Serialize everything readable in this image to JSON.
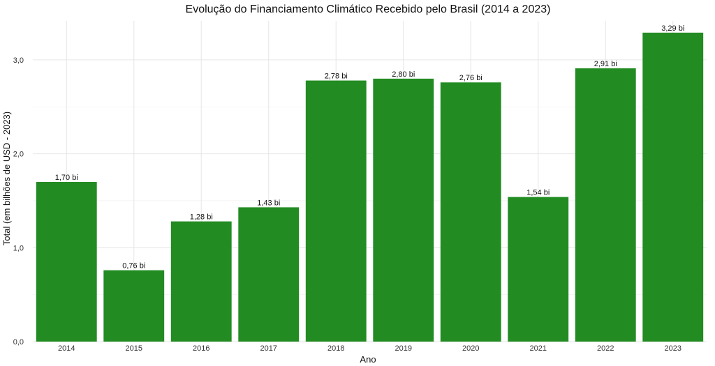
{
  "chart_data": {
    "type": "bar",
    "title": "Evolução do Financiamento Climático Recebido pelo Brasil (2014 a 2023)",
    "xlabel": "Ano",
    "ylabel": "Total (em bilhões de USD - 2023)",
    "categories": [
      "2014",
      "2015",
      "2016",
      "2017",
      "2018",
      "2019",
      "2020",
      "2021",
      "2022",
      "2023"
    ],
    "values": [
      1.7,
      0.76,
      1.28,
      1.43,
      2.78,
      2.8,
      2.76,
      1.54,
      2.91,
      3.29
    ],
    "data_labels": [
      "1,70 bi",
      "0,76 bi",
      "1,28 bi",
      "1,43 bi",
      "2,78 bi",
      "2,80 bi",
      "2,76 bi",
      "1,54 bi",
      "2,91 bi",
      "3,29 bi"
    ],
    "y_ticks": [
      0,
      1,
      2,
      3
    ],
    "y_tick_labels": [
      "0,0",
      "1,0",
      "2,0",
      "3,0"
    ],
    "ylim": [
      0,
      3.45
    ],
    "grid": true,
    "legend": "none",
    "bar_color": "#228B22"
  }
}
